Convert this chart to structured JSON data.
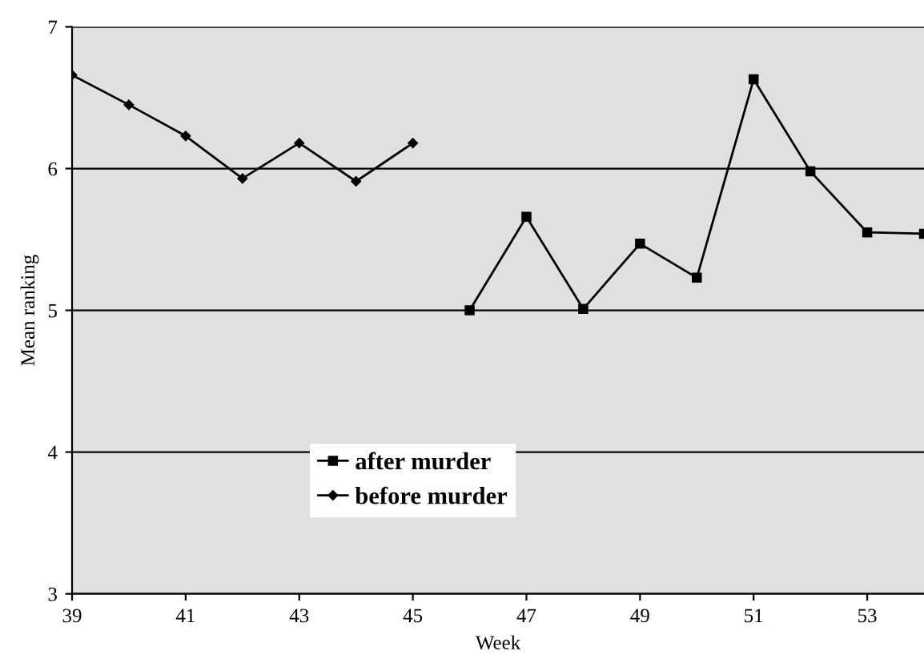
{
  "chart_data": {
    "type": "line",
    "xlabel": "Week",
    "ylabel": "Mean ranking",
    "xlim": [
      39,
      54
    ],
    "xticks": [
      39,
      41,
      43,
      45,
      47,
      49,
      51,
      53
    ],
    "ylim": [
      3,
      7
    ],
    "yticks": [
      3,
      4,
      5,
      6,
      7
    ],
    "grid": "y",
    "legend": "bottom",
    "line_style": "solid",
    "series": [
      {
        "name": "after murder",
        "color": "#000000",
        "marker": "square",
        "x": [
          46,
          47,
          48,
          49,
          50,
          51,
          52,
          53,
          54
        ],
        "values": [
          5.0,
          5.66,
          5.01,
          5.47,
          5.23,
          6.63,
          5.98,
          5.55,
          5.54
        ]
      },
      {
        "name": "before murder",
        "color": "#000000",
        "marker": "diamond",
        "x": [
          39,
          40,
          41,
          42,
          43,
          44,
          45
        ],
        "values": [
          6.66,
          6.45,
          6.23,
          5.93,
          6.18,
          5.91,
          6.18
        ]
      }
    ]
  }
}
